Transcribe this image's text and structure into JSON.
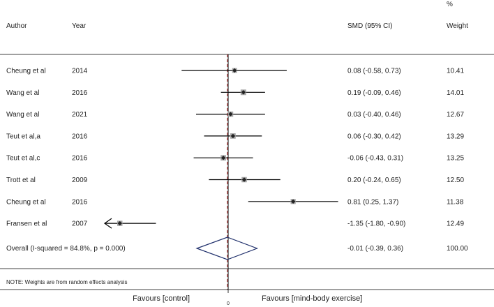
{
  "header": {
    "author": "Author",
    "year": "Year",
    "smd": "SMD (95% CI)",
    "weight_pct": "%",
    "weight": "Weight"
  },
  "chart_data": {
    "type": "forest",
    "xlim": [
      -1.5,
      1.6
    ],
    "null_line": 0,
    "overall_line": -0.01,
    "tick_label": "0",
    "studies": [
      {
        "author": "Cheung et al",
        "year": "2014",
        "smd": 0.08,
        "lo": -0.58,
        "hi": 0.73,
        "ci_text": "0.08 (-0.58, 0.73)",
        "weight": 10.41,
        "weight_text": "10.41"
      },
      {
        "author": "Wang et al",
        "year": "2016",
        "smd": 0.19,
        "lo": -0.09,
        "hi": 0.46,
        "ci_text": "0.19 (-0.09, 0.46)",
        "weight": 14.01,
        "weight_text": "14.01"
      },
      {
        "author": "Wang et al",
        "year": "2021",
        "smd": 0.03,
        "lo": -0.4,
        "hi": 0.46,
        "ci_text": "0.03 (-0.40, 0.46)",
        "weight": 12.67,
        "weight_text": "12.67"
      },
      {
        "author": "Teut et al,a",
        "year": "2016",
        "smd": 0.06,
        "lo": -0.3,
        "hi": 0.42,
        "ci_text": "0.06 (-0.30, 0.42)",
        "weight": 13.29,
        "weight_text": "13.29"
      },
      {
        "author": "Teut et al,c",
        "year": "2016",
        "smd": -0.06,
        "lo": -0.43,
        "hi": 0.31,
        "ci_text": "-0.06 (-0.43, 0.31)",
        "weight": 13.25,
        "weight_text": "13.25"
      },
      {
        "author": "Trott et al",
        "year": "2009",
        "smd": 0.2,
        "lo": -0.24,
        "hi": 0.65,
        "ci_text": "0.20 (-0.24, 0.65)",
        "weight": 12.5,
        "weight_text": "12.50"
      },
      {
        "author": "Cheung et al",
        "year": "2016",
        "smd": 0.81,
        "lo": 0.25,
        "hi": 1.37,
        "ci_text": "0.81 (0.25, 1.37)",
        "weight": 11.38,
        "weight_text": "11.38"
      },
      {
        "author": "Fransen et al",
        "year": "2007",
        "smd": -1.35,
        "lo": -1.8,
        "hi": -0.9,
        "ci_text": "-1.35 (-1.80, -0.90)",
        "weight": 12.49,
        "weight_text": "12.49",
        "lo_truncated": true
      }
    ],
    "overall": {
      "label": "Overall  (I-squared = 84.8%, p = 0.000)",
      "smd": -0.01,
      "lo": -0.39,
      "hi": 0.36,
      "ci_text": "-0.01 (-0.39, 0.36)",
      "weight_text": "100.00"
    },
    "note": "NOTE: Weights are from random effects analysis",
    "favours_left": "Favours [control]",
    "favours_right": "Favours [mind-body exercise]",
    "colors": {
      "ci_line": "#000000",
      "weight_box": "#a6a6a6",
      "point": "#222222",
      "diamond": "#1f2f6b",
      "overall_line": "#b22222",
      "axis": "#000000"
    }
  }
}
